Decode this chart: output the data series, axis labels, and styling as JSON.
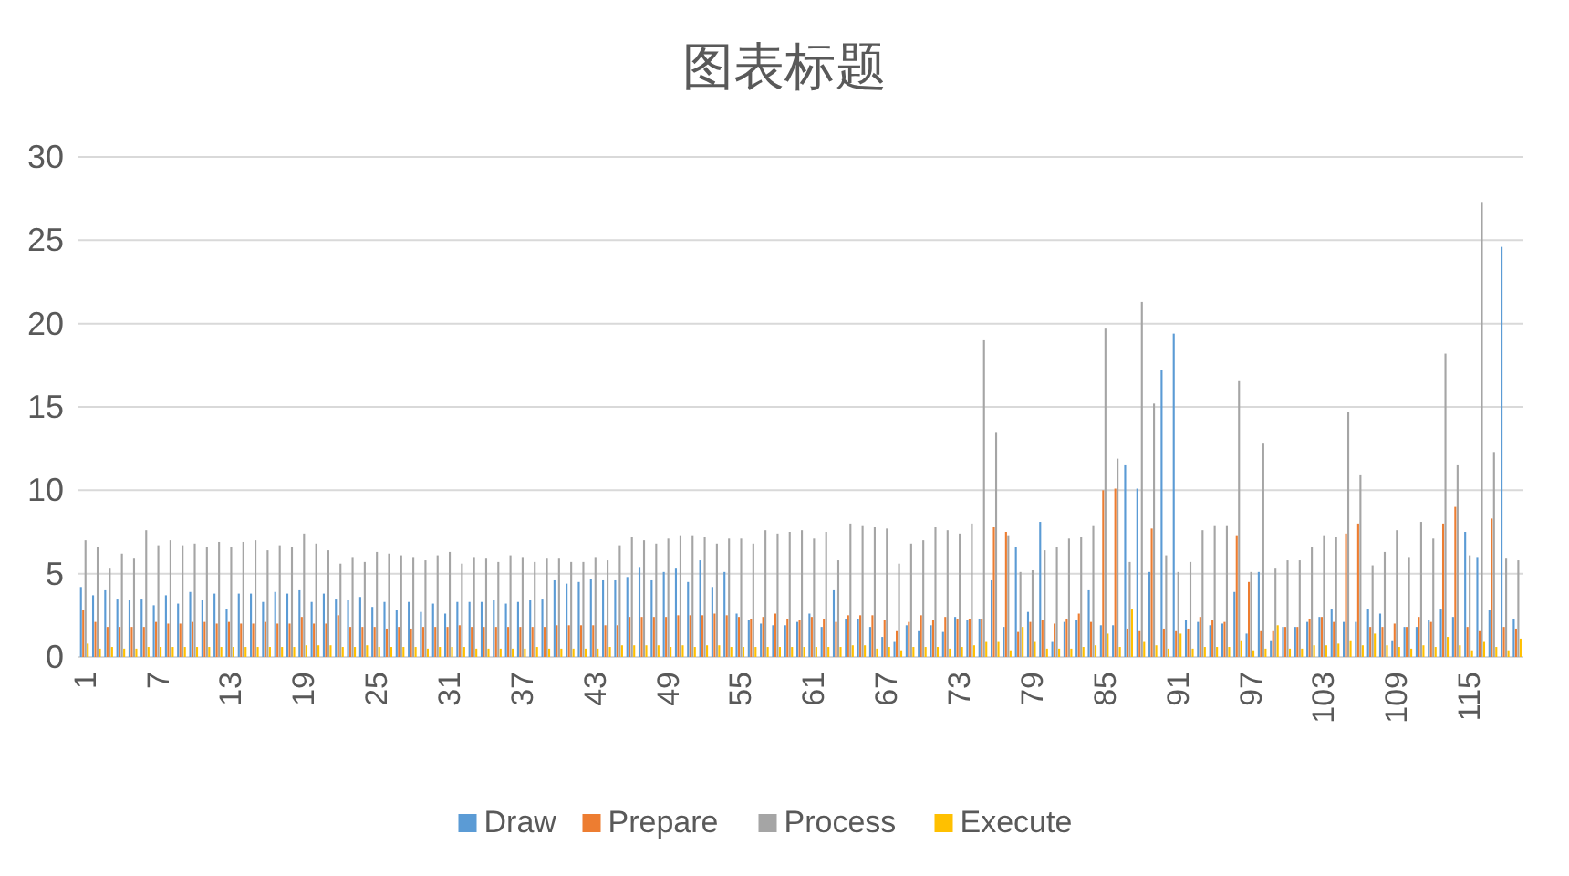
{
  "chart_data": {
    "type": "bar",
    "title": "图表标题",
    "categories": [
      "1",
      null,
      null,
      null,
      null,
      null,
      "7",
      null,
      null,
      null,
      null,
      null,
      "13",
      null,
      null,
      null,
      null,
      null,
      "19",
      null,
      null,
      null,
      null,
      null,
      "25",
      null,
      null,
      null,
      null,
      null,
      "31",
      null,
      null,
      null,
      null,
      null,
      "37",
      null,
      null,
      null,
      null,
      null,
      "43",
      null,
      null,
      null,
      null,
      null,
      "49",
      null,
      null,
      null,
      null,
      null,
      "55",
      null,
      null,
      null,
      null,
      null,
      "61",
      null,
      null,
      null,
      null,
      null,
      "67",
      null,
      null,
      null,
      null,
      null,
      "73",
      null,
      null,
      null,
      null,
      null,
      "79",
      null,
      null,
      null,
      null,
      null,
      "85",
      null,
      null,
      null,
      null,
      null,
      "91",
      null,
      null,
      null,
      null,
      null,
      "97",
      null,
      null,
      null,
      null,
      null,
      "103",
      null,
      null,
      null,
      null,
      null,
      "109",
      null,
      null,
      null,
      null,
      null,
      "115",
      null,
      null,
      null,
      null
    ],
    "series": [
      {
        "name": "Draw",
        "color": "#5b9bd5",
        "values": [
          4.2,
          3.7,
          4.0,
          3.5,
          3.4,
          3.5,
          3.1,
          3.7,
          3.2,
          3.9,
          3.4,
          3.8,
          2.9,
          3.8,
          3.8,
          3.3,
          3.9,
          3.8,
          4.0,
          3.3,
          3.8,
          3.5,
          3.4,
          3.6,
          3.0,
          3.3,
          2.8,
          3.3,
          2.7,
          3.2,
          2.6,
          3.3,
          3.3,
          3.3,
          3.4,
          3.2,
          3.3,
          3.4,
          3.5,
          4.6,
          4.4,
          4.5,
          4.7,
          4.6,
          4.6,
          4.8,
          5.4,
          4.6,
          5.1,
          5.3,
          4.5,
          5.8,
          4.2,
          5.1,
          2.6,
          2.2,
          2.0,
          1.9,
          1.9,
          2.1,
          2.6,
          1.8,
          4.0,
          2.3,
          2.3,
          1.8,
          1.2,
          0.9,
          1.9,
          1.6,
          1.9,
          1.5,
          2.4,
          2.2,
          2.3,
          4.6,
          1.8,
          6.6,
          2.7,
          8.1,
          0.9,
          2.1,
          2.2,
          4.0,
          1.9,
          1.9,
          11.5,
          10.1,
          5.1,
          17.2,
          19.4,
          2.2,
          2.1,
          1.9,
          2.0,
          3.9,
          1.4,
          5.1,
          1.0,
          1.8,
          1.8,
          2.1,
          2.4,
          2.9,
          2.1,
          2.1,
          2.9,
          2.6,
          1.0,
          1.8,
          1.8,
          2.2,
          2.9,
          2.4,
          7.5,
          6.0,
          2.8,
          24.6,
          2.3
        ]
      },
      {
        "name": "Prepare",
        "color": "#ed7d31",
        "values": [
          2.8,
          2.1,
          1.8,
          1.8,
          1.8,
          1.8,
          2.1,
          2.0,
          2.0,
          2.1,
          2.1,
          2.0,
          2.1,
          2.0,
          2.0,
          2.1,
          2.0,
          2.0,
          2.4,
          2.0,
          2.0,
          2.5,
          1.8,
          1.8,
          1.8,
          1.7,
          1.8,
          1.7,
          1.8,
          1.8,
          1.8,
          1.9,
          1.8,
          1.8,
          1.8,
          1.8,
          1.8,
          1.8,
          1.8,
          1.9,
          1.9,
          1.9,
          1.9,
          1.9,
          1.9,
          2.4,
          2.4,
          2.4,
          2.4,
          2.5,
          2.5,
          2.5,
          2.6,
          2.5,
          2.4,
          2.3,
          2.4,
          2.6,
          2.3,
          2.2,
          2.4,
          2.3,
          2.1,
          2.5,
          2.5,
          2.5,
          2.2,
          1.6,
          2.1,
          2.5,
          2.2,
          2.4,
          2.3,
          2.3,
          2.3,
          7.8,
          7.5,
          1.5,
          2.1,
          2.2,
          2.0,
          2.3,
          2.6,
          2.1,
          10.0,
          10.1,
          1.7,
          1.6,
          7.7,
          1.7,
          1.6,
          1.7,
          2.4,
          2.2,
          2.1,
          7.3,
          4.5,
          1.6,
          1.6,
          1.8,
          1.8,
          2.3,
          2.4,
          2.1,
          7.4,
          8.0,
          1.8,
          1.8,
          2.0,
          1.8,
          2.4,
          2.1,
          8.0,
          9.0,
          1.8,
          1.6,
          8.3,
          1.8,
          1.7
        ]
      },
      {
        "name": "Process",
        "color": "#a5a5a5",
        "values": [
          7.0,
          6.6,
          5.3,
          6.2,
          5.9,
          7.6,
          6.7,
          7.0,
          6.7,
          6.8,
          6.6,
          6.9,
          6.6,
          6.9,
          7.0,
          6.4,
          6.7,
          6.6,
          7.4,
          6.8,
          6.4,
          5.6,
          6.0,
          5.7,
          6.3,
          6.2,
          6.1,
          6.0,
          5.8,
          6.1,
          6.3,
          5.6,
          6.0,
          5.9,
          5.7,
          6.1,
          6.0,
          5.7,
          5.9,
          5.9,
          5.7,
          5.7,
          6.0,
          5.8,
          6.7,
          7.2,
          7.0,
          6.8,
          7.1,
          7.3,
          7.3,
          7.2,
          6.8,
          7.1,
          7.1,
          6.8,
          7.6,
          7.4,
          7.5,
          7.6,
          7.1,
          7.5,
          5.8,
          8.0,
          7.9,
          7.8,
          7.7,
          5.6,
          6.8,
          7.0,
          7.8,
          7.6,
          7.4,
          8.0,
          19.0,
          13.5,
          7.3,
          5.1,
          5.2,
          6.4,
          6.6,
          7.1,
          7.2,
          7.9,
          19.7,
          11.9,
          5.7,
          21.3,
          15.2,
          6.1,
          5.1,
          5.7,
          7.6,
          7.9,
          7.9,
          16.6,
          5.1,
          12.8,
          5.3,
          5.8,
          5.8,
          6.6,
          7.3,
          7.2,
          14.7,
          10.9,
          5.5,
          6.3,
          7.6,
          6.0,
          8.1,
          7.1,
          18.2,
          11.5,
          6.1,
          27.3,
          12.3,
          5.9,
          5.8
        ]
      },
      {
        "name": "Execute",
        "color": "#ffc000",
        "values": [
          0.8,
          0.5,
          0.6,
          0.5,
          0.5,
          0.6,
          0.6,
          0.6,
          0.6,
          0.6,
          0.6,
          0.6,
          0.6,
          0.6,
          0.6,
          0.6,
          0.6,
          0.6,
          0.7,
          0.7,
          0.7,
          0.6,
          0.6,
          0.7,
          0.6,
          0.6,
          0.6,
          0.6,
          0.5,
          0.6,
          0.6,
          0.6,
          0.5,
          0.5,
          0.5,
          0.5,
          0.5,
          0.6,
          0.5,
          0.5,
          0.5,
          0.5,
          0.5,
          0.6,
          0.7,
          0.7,
          0.7,
          0.7,
          0.6,
          0.7,
          0.6,
          0.7,
          0.7,
          0.6,
          0.6,
          0.6,
          0.6,
          0.6,
          0.6,
          0.6,
          0.6,
          0.6,
          0.6,
          0.7,
          0.7,
          0.5,
          0.6,
          0.4,
          0.6,
          0.6,
          0.6,
          0.5,
          0.6,
          0.7,
          0.9,
          0.9,
          0.4,
          1.8,
          0.9,
          0.5,
          0.5,
          0.5,
          0.6,
          0.7,
          1.4,
          0.6,
          2.9,
          0.9,
          0.7,
          0.5,
          1.4,
          0.5,
          0.6,
          0.6,
          0.6,
          1.0,
          0.4,
          0.5,
          1.9,
          0.5,
          0.5,
          0.7,
          0.7,
          0.8,
          1.0,
          0.7,
          1.4,
          0.7,
          0.6,
          0.5,
          0.7,
          0.6,
          1.2,
          0.7,
          0.4,
          0.9,
          0.6,
          0.4,
          1.1
        ]
      }
    ],
    "ylim": [
      0,
      30
    ],
    "yticks": [
      0,
      5,
      10,
      15,
      20,
      25,
      30
    ],
    "grid": "y",
    "legend": "bottom"
  }
}
